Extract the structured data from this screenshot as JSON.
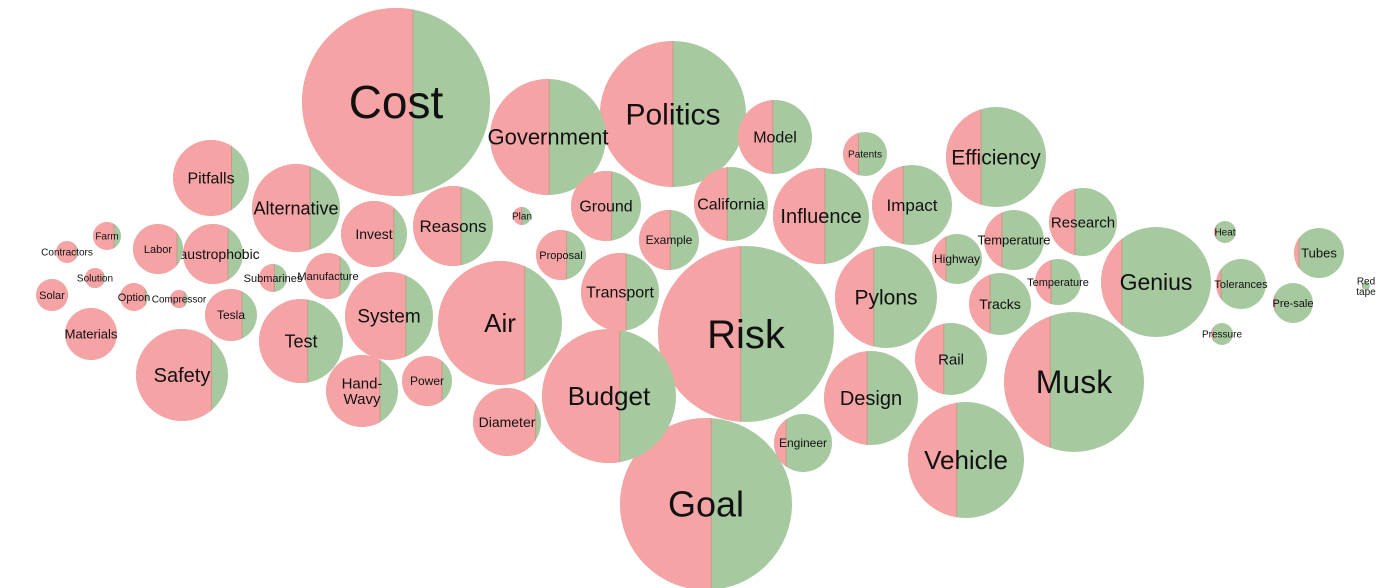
{
  "chart_data": {
    "type": "bubble",
    "title": "",
    "series": [
      {
        "name": "negative",
        "color": "#f6a3a5"
      },
      {
        "name": "positive",
        "color": "#a6c9a0"
      }
    ],
    "divider_color": "#c79a8c",
    "bubbles": [
      {
        "label": [
          "Cost"
        ],
        "weight": 100,
        "share_negative": 0.59
      },
      {
        "label": [
          "Risk"
        ],
        "weight": 93,
        "share_negative": 0.47
      },
      {
        "label": [
          "Goal"
        ],
        "weight": 71,
        "share_negative": 0.53
      },
      {
        "label": [
          "Musk"
        ],
        "weight": 55,
        "share_negative": 0.33
      },
      {
        "label": [
          "Politics"
        ],
        "weight": 52,
        "share_negative": 0.5
      },
      {
        "label": [
          "Budget"
        ],
        "weight": 42,
        "share_negative": 0.58
      },
      {
        "label": [
          "Genius"
        ],
        "weight": 41,
        "share_negative": 0.19
      },
      {
        "label": [
          "Vehicle"
        ],
        "weight": 38,
        "share_negative": 0.42
      },
      {
        "label": [
          "Government"
        ],
        "weight": 38,
        "share_negative": 0.51
      },
      {
        "label": [
          "Air"
        ],
        "weight": 38,
        "share_negative": 0.7
      },
      {
        "label": [
          "Pylons"
        ],
        "weight": 30,
        "share_negative": 0.38
      },
      {
        "label": [
          "Influence"
        ],
        "weight": 28,
        "share_negative": 0.54
      },
      {
        "label": [
          "Design"
        ],
        "weight": 27,
        "share_negative": 0.46
      },
      {
        "label": [
          "Efficiency"
        ],
        "weight": 25,
        "share_negative": 0.35
      },
      {
        "label": [
          "Safety"
        ],
        "weight": 24,
        "share_negative": 0.82
      },
      {
        "label": [
          "System"
        ],
        "weight": 22,
        "share_negative": 0.69
      },
      {
        "label": [
          "Alternative"
        ],
        "weight": 22,
        "share_negative": 0.66
      },
      {
        "label": [
          "Test"
        ],
        "weight": 20,
        "share_negative": 0.58
      },
      {
        "label": [
          "Impact"
        ],
        "weight": 18,
        "share_negative": 0.39
      },
      {
        "label": [
          "California"
        ],
        "weight": 16,
        "share_negative": 0.45
      },
      {
        "label": [
          "Transport"
        ],
        "weight": 16,
        "share_negative": 0.58
      },
      {
        "label": [
          "Hand-",
          "Wavy"
        ],
        "weight": 15,
        "share_negative": 0.75
      },
      {
        "label": [
          "Ground"
        ],
        "weight": 15,
        "share_negative": 0.58
      },
      {
        "label": [
          "Reasons"
        ],
        "weight": 15,
        "share_negative": 0.6
      },
      {
        "label": [
          "Rail"
        ],
        "weight": 15,
        "share_negative": 0.4
      },
      {
        "label": [
          "Pitfalls"
        ],
        "weight": 14,
        "share_negative": 0.77
      },
      {
        "label": [
          "Model"
        ],
        "weight": 13,
        "share_negative": 0.47
      },
      {
        "label": [
          "Research"
        ],
        "weight": 12,
        "share_negative": 0.38
      },
      {
        "label": [
          "Diameter"
        ],
        "weight": 11,
        "share_negative": 0.92
      },
      {
        "label": [
          "Temperature"
        ],
        "weight": 10,
        "share_negative": 0.3
      },
      {
        "label": [
          "Tubes"
        ],
        "weight": 10,
        "share_negative": 0.1
      },
      {
        "label": [
          "Invest"
        ],
        "weight": 10,
        "share_negative": 0.8
      },
      {
        "label": [
          "Claustrophobic"
        ],
        "weight": 9,
        "share_negative": 0.75
      },
      {
        "label": [
          "Tracks"
        ],
        "weight": 9,
        "share_negative": 0.34
      },
      {
        "label": [
          "Power"
        ],
        "weight": 8,
        "share_negative": 0.8
      },
      {
        "label": [
          "Engineer"
        ],
        "weight": 7,
        "share_negative": 0.21
      },
      {
        "label": [
          "Example"
        ],
        "weight": 7,
        "share_negative": 0.52
      },
      {
        "label": [
          "Materials"
        ],
        "weight": 7,
        "share_negative": 1.0
      },
      {
        "label": [
          "Highway"
        ],
        "weight": 6,
        "share_negative": 0.28
      },
      {
        "label": [
          "Tesla"
        ],
        "weight": 6,
        "share_negative": 0.71
      },
      {
        "label": [
          "Manufacture"
        ],
        "weight": 5,
        "share_negative": 0.76
      },
      {
        "label": [
          "Labor"
        ],
        "weight": 5,
        "share_negative": 0.88
      },
      {
        "label": [
          "Proposal"
        ],
        "weight": 5,
        "share_negative": 0.61
      },
      {
        "label": [
          "Tolerances"
        ],
        "weight": 5,
        "share_negative": 0.1
      },
      {
        "label": [
          "Temperature"
        ],
        "weight": 4,
        "share_negative": 0.35
      },
      {
        "label": [
          "Patents"
        ],
        "weight": 3,
        "share_negative": 0.35
      },
      {
        "label": [
          "Pre-sale"
        ],
        "weight": 3,
        "share_negative": 0.05
      },
      {
        "label": [
          "Farm"
        ],
        "weight": 2,
        "share_negative": 0.75
      },
      {
        "label": [
          "Submarines"
        ],
        "weight": 1.5,
        "share_negative": 0.55
      },
      {
        "label": [
          "Solar"
        ],
        "weight": 1.5,
        "share_negative": 1.0
      },
      {
        "label": [
          "Option"
        ],
        "weight": 1.5,
        "share_negative": 0.9
      },
      {
        "label": [
          "Heat"
        ],
        "weight": 1.2,
        "share_negative": 0.1
      },
      {
        "label": [
          "Pressure"
        ],
        "weight": 1.2,
        "share_negative": 0.1
      },
      {
        "label": [
          "Plan"
        ],
        "weight": 0.8,
        "share_negative": 0.5
      },
      {
        "label": [
          "Contractors"
        ],
        "weight": 0.8,
        "share_negative": 0.9
      },
      {
        "label": [
          "Solution"
        ],
        "weight": 0.8,
        "share_negative": 0.9
      },
      {
        "label": [
          "Compressor"
        ],
        "weight": 0.6,
        "share_negative": 0.8
      },
      {
        "label": [
          "Red",
          "tape"
        ],
        "weight": 0.2,
        "share_negative": 0.1
      }
    ]
  }
}
